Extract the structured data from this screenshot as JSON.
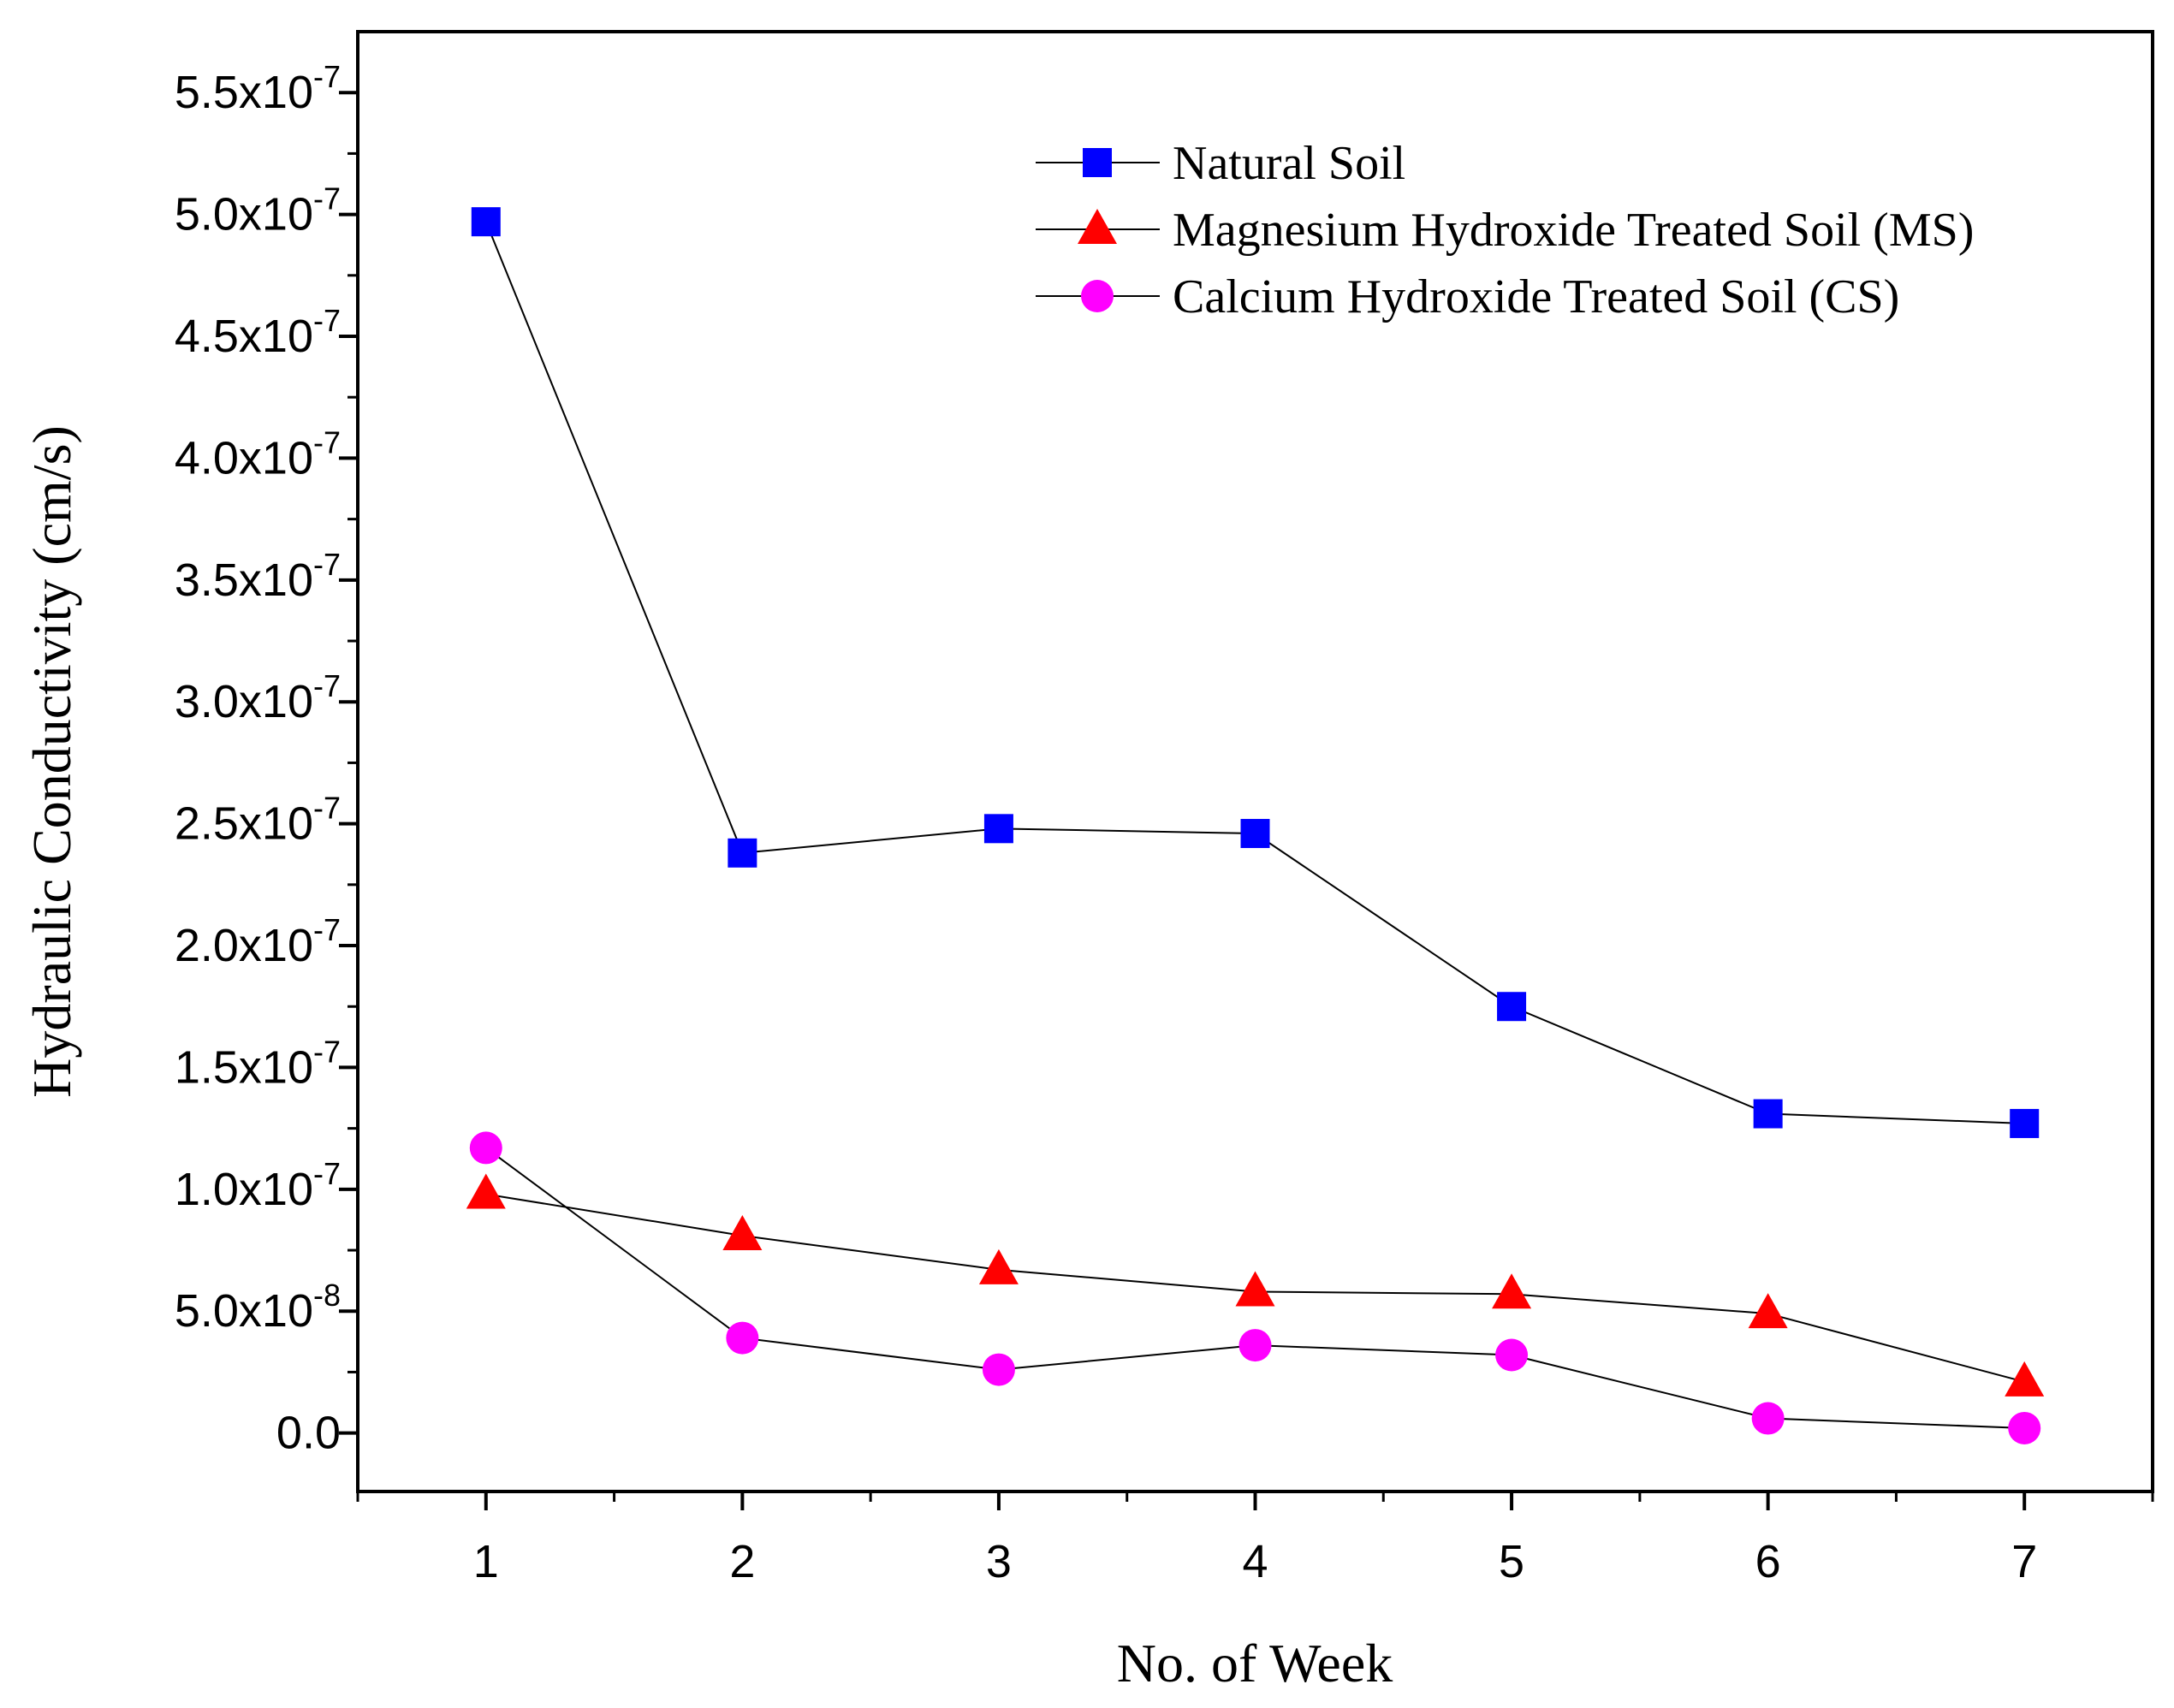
{
  "chart_data": {
    "type": "line",
    "title": "",
    "xlabel": "No. of Week",
    "ylabel": "Hydraulic Conductivity (cm/s)",
    "x": [
      1,
      2,
      3,
      4,
      5,
      6,
      7
    ],
    "xlim": [
      0.5,
      7.5
    ],
    "ylim": [
      -2.4e-08,
      5.75e-07
    ],
    "x_ticks": [
      {
        "value": 1,
        "label": "1"
      },
      {
        "value": 2,
        "label": "2"
      },
      {
        "value": 3,
        "label": "3"
      },
      {
        "value": 4,
        "label": "4"
      },
      {
        "value": 5,
        "label": "5"
      },
      {
        "value": 6,
        "label": "6"
      },
      {
        "value": 7,
        "label": "7"
      }
    ],
    "y_ticks": [
      {
        "value": 0,
        "mantissa": "0.0",
        "exponent": ""
      },
      {
        "value": 5e-08,
        "mantissa": "5.0x10",
        "exponent": "-8"
      },
      {
        "value": 1e-07,
        "mantissa": "1.0x10",
        "exponent": "-7"
      },
      {
        "value": 1.5e-07,
        "mantissa": "1.5x10",
        "exponent": "-7"
      },
      {
        "value": 2e-07,
        "mantissa": "2.0x10",
        "exponent": "-7"
      },
      {
        "value": 2.5e-07,
        "mantissa": "2.5x10",
        "exponent": "-7"
      },
      {
        "value": 3e-07,
        "mantissa": "3.0x10",
        "exponent": "-7"
      },
      {
        "value": 3.5e-07,
        "mantissa": "3.5x10",
        "exponent": "-7"
      },
      {
        "value": 4e-07,
        "mantissa": "4.0x10",
        "exponent": "-7"
      },
      {
        "value": 4.5e-07,
        "mantissa": "4.5x10",
        "exponent": "-7"
      },
      {
        "value": 5e-07,
        "mantissa": "5.0x10",
        "exponent": "-7"
      },
      {
        "value": 5.5e-07,
        "mantissa": "5.5x10",
        "exponent": "-7"
      }
    ],
    "grid": false,
    "legend_position": "top-right",
    "series": [
      {
        "name": "Natural Soil",
        "marker": "square",
        "color": "#0000ff",
        "values": [
          4.97e-07,
          2.38e-07,
          2.48e-07,
          2.46e-07,
          1.75e-07,
          1.31e-07,
          1.27e-07
        ]
      },
      {
        "name": "Magnesium Hydroxide Treated Soil (MS)",
        "marker": "triangle",
        "color": "#ff0000",
        "values": [
          9.8e-08,
          8.1e-08,
          6.7e-08,
          5.8e-08,
          5.7e-08,
          4.9e-08,
          2.1e-08
        ]
      },
      {
        "name": "Calcium Hydroxide Treated Soil (CS)",
        "marker": "circle",
        "color": "#ff00ff",
        "values": [
          1.17e-07,
          3.9e-08,
          2.6e-08,
          3.6e-08,
          3.2e-08,
          6e-09,
          2e-09
        ]
      }
    ]
  }
}
